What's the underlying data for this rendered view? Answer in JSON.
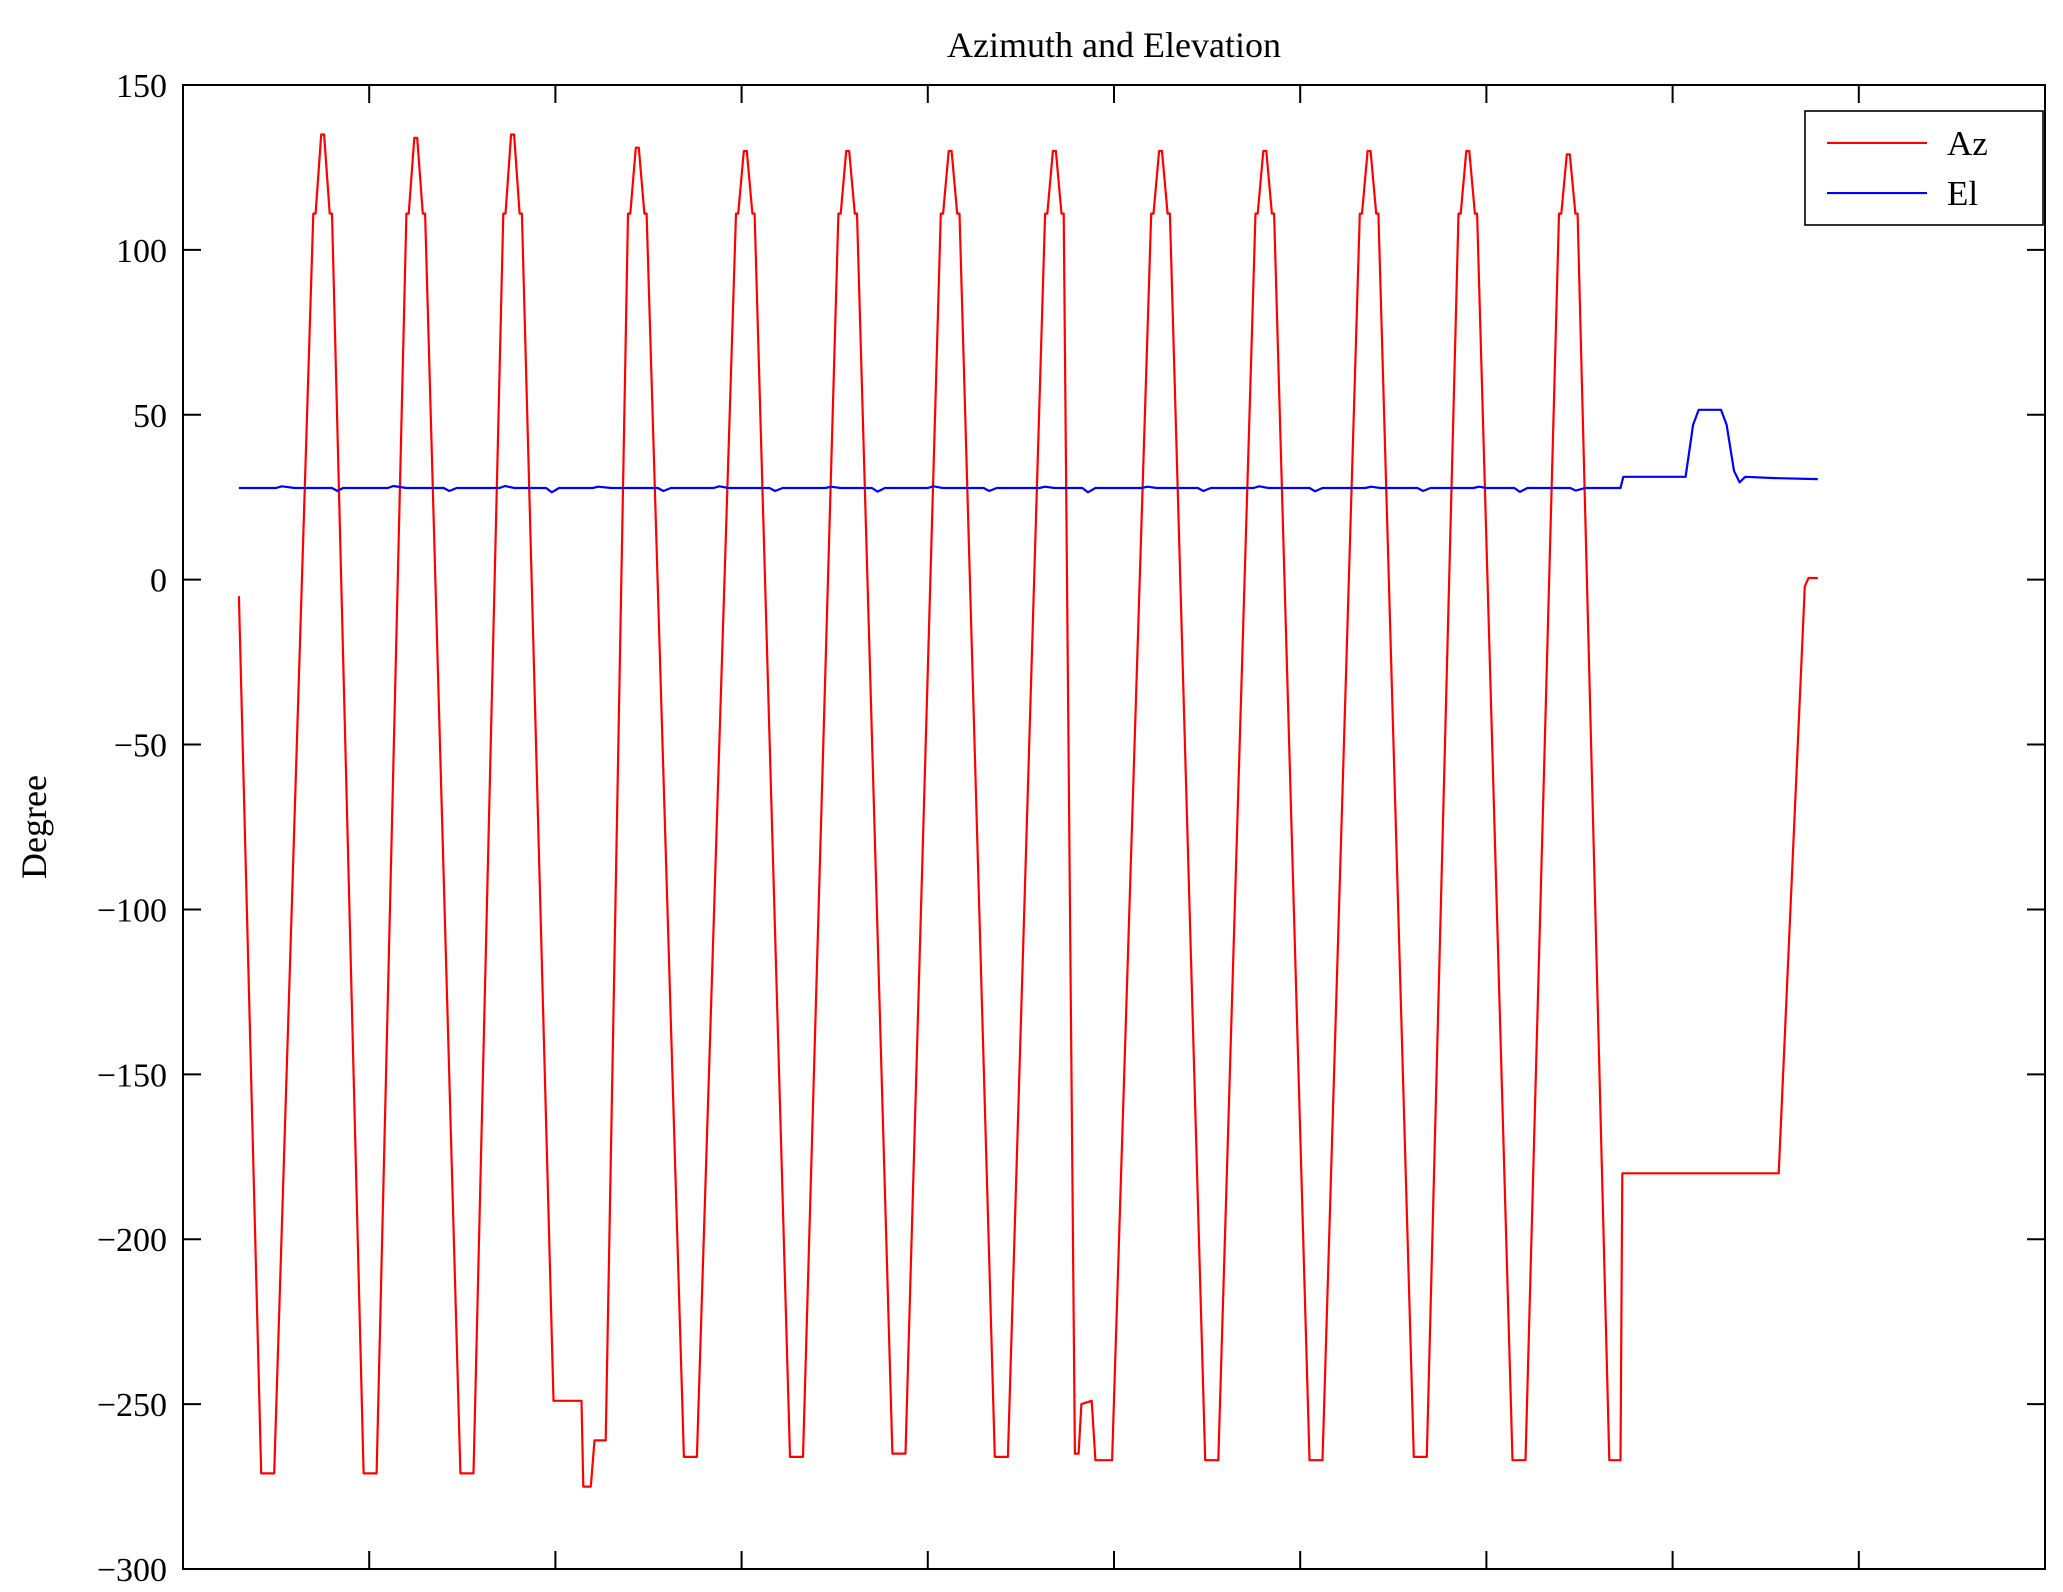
{
  "chart_data": {
    "type": "line",
    "title": "Azimuth and Elevation",
    "xlabel": "",
    "ylabel": "Degree",
    "xlim": [
      0,
      100
    ],
    "ylim": [
      -300,
      150
    ],
    "yticks": [
      -300,
      -250,
      -200,
      -150,
      -100,
      -50,
      0,
      50,
      100,
      150
    ],
    "xticks": [
      0,
      10,
      20,
      30,
      40,
      50,
      60,
      70,
      80,
      90,
      100
    ],
    "xticklabels_visible": false,
    "grid": false,
    "axis_color": "#000000",
    "legend": {
      "position": "upper right",
      "entries": [
        {
          "label": "Az",
          "color": "#ff0000"
        },
        {
          "label": "El",
          "color": "#0000ff"
        }
      ]
    },
    "series": [
      {
        "name": "Az",
        "color": "#ff0000",
        "points": [
          [
            3.0,
            -5
          ],
          [
            4.2,
            -271
          ],
          [
            4.9,
            -271
          ],
          [
            7.0,
            111
          ],
          [
            7.12,
            111
          ],
          [
            7.42,
            135
          ],
          [
            7.58,
            135
          ],
          [
            7.88,
            111
          ],
          [
            8.0,
            111
          ],
          [
            9.7,
            -271
          ],
          [
            10.4,
            -271
          ],
          [
            12.0,
            111
          ],
          [
            12.12,
            111
          ],
          [
            12.42,
            134
          ],
          [
            12.58,
            134
          ],
          [
            12.88,
            111
          ],
          [
            13.0,
            111
          ],
          [
            14.9,
            -271
          ],
          [
            15.6,
            -271
          ],
          [
            17.2,
            111
          ],
          [
            17.32,
            111
          ],
          [
            17.62,
            135
          ],
          [
            17.78,
            135
          ],
          [
            18.08,
            111
          ],
          [
            18.2,
            111
          ],
          [
            19.9,
            -249
          ],
          [
            21.4,
            -249
          ],
          [
            21.5,
            -275
          ],
          [
            21.9,
            -275
          ],
          [
            22.1,
            -261
          ],
          [
            22.7,
            -261
          ],
          [
            23.9,
            111
          ],
          [
            24.02,
            111
          ],
          [
            24.32,
            131
          ],
          [
            24.48,
            131
          ],
          [
            24.78,
            111
          ],
          [
            24.9,
            111
          ],
          [
            26.9,
            -266
          ],
          [
            27.6,
            -266
          ],
          [
            29.7,
            111
          ],
          [
            29.82,
            111
          ],
          [
            30.12,
            130
          ],
          [
            30.28,
            130
          ],
          [
            30.58,
            111
          ],
          [
            30.7,
            111
          ],
          [
            32.6,
            -266
          ],
          [
            33.3,
            -266
          ],
          [
            35.2,
            111
          ],
          [
            35.32,
            111
          ],
          [
            35.62,
            130
          ],
          [
            35.78,
            130
          ],
          [
            36.08,
            111
          ],
          [
            36.2,
            111
          ],
          [
            38.1,
            -265
          ],
          [
            38.8,
            -265
          ],
          [
            40.7,
            111
          ],
          [
            40.82,
            111
          ],
          [
            41.12,
            130
          ],
          [
            41.28,
            130
          ],
          [
            41.58,
            111
          ],
          [
            41.7,
            111
          ],
          [
            43.6,
            -266
          ],
          [
            44.3,
            -266
          ],
          [
            46.3,
            111
          ],
          [
            46.42,
            111
          ],
          [
            46.72,
            130
          ],
          [
            46.88,
            130
          ],
          [
            47.18,
            111
          ],
          [
            47.3,
            111
          ],
          [
            47.9,
            -265
          ],
          [
            48.1,
            -265
          ],
          [
            48.25,
            -250
          ],
          [
            48.8,
            -249
          ],
          [
            49.0,
            -267
          ],
          [
            49.9,
            -267
          ],
          [
            52.0,
            111
          ],
          [
            52.12,
            111
          ],
          [
            52.42,
            130
          ],
          [
            52.58,
            130
          ],
          [
            52.88,
            111
          ],
          [
            53.0,
            111
          ],
          [
            54.9,
            -267
          ],
          [
            55.6,
            -267
          ],
          [
            57.6,
            111
          ],
          [
            57.72,
            111
          ],
          [
            58.02,
            130
          ],
          [
            58.18,
            130
          ],
          [
            58.48,
            111
          ],
          [
            58.6,
            111
          ],
          [
            60.5,
            -267
          ],
          [
            61.2,
            -267
          ],
          [
            63.2,
            111
          ],
          [
            63.32,
            111
          ],
          [
            63.62,
            130
          ],
          [
            63.78,
            130
          ],
          [
            64.08,
            111
          ],
          [
            64.2,
            111
          ],
          [
            66.1,
            -266
          ],
          [
            66.8,
            -266
          ],
          [
            68.5,
            111
          ],
          [
            68.62,
            111
          ],
          [
            68.92,
            130
          ],
          [
            69.08,
            130
          ],
          [
            69.38,
            111
          ],
          [
            69.5,
            111
          ],
          [
            71.4,
            -267
          ],
          [
            72.1,
            -267
          ],
          [
            73.9,
            111
          ],
          [
            74.02,
            111
          ],
          [
            74.32,
            129
          ],
          [
            74.48,
            129
          ],
          [
            74.78,
            111
          ],
          [
            74.9,
            111
          ],
          [
            76.6,
            -267
          ],
          [
            77.2,
            -267
          ],
          [
            77.3,
            -180
          ],
          [
            85.7,
            -180
          ],
          [
            87.1,
            -2
          ],
          [
            87.3,
            0.5
          ],
          [
            87.8,
            0.5
          ]
        ]
      },
      {
        "name": "El",
        "color": "#0000ff",
        "points": [
          [
            3.0,
            27.8
          ],
          [
            5.0,
            27.8
          ],
          [
            5.3,
            28.3
          ],
          [
            6.0,
            27.8
          ],
          [
            8.0,
            27.8
          ],
          [
            8.3,
            26.9
          ],
          [
            8.6,
            27.8
          ],
          [
            11.0,
            27.8
          ],
          [
            11.3,
            28.4
          ],
          [
            12.0,
            27.8
          ],
          [
            14.0,
            27.8
          ],
          [
            14.3,
            26.9
          ],
          [
            14.7,
            27.8
          ],
          [
            17.0,
            27.8
          ],
          [
            17.3,
            28.4
          ],
          [
            17.8,
            27.8
          ],
          [
            19.5,
            27.8
          ],
          [
            19.8,
            26.5
          ],
          [
            20.2,
            27.8
          ],
          [
            22.0,
            27.8
          ],
          [
            22.3,
            28.2
          ],
          [
            23.0,
            27.8
          ],
          [
            25.5,
            27.8
          ],
          [
            25.8,
            26.9
          ],
          [
            26.2,
            27.8
          ],
          [
            28.5,
            27.8
          ],
          [
            28.8,
            28.3
          ],
          [
            29.3,
            27.8
          ],
          [
            31.5,
            27.8
          ],
          [
            31.8,
            26.9
          ],
          [
            32.2,
            27.8
          ],
          [
            34.5,
            27.8
          ],
          [
            34.8,
            28.2
          ],
          [
            35.3,
            27.8
          ],
          [
            37.0,
            27.8
          ],
          [
            37.3,
            26.7
          ],
          [
            37.7,
            27.8
          ],
          [
            40.0,
            27.8
          ],
          [
            40.3,
            28.3
          ],
          [
            40.8,
            27.8
          ],
          [
            43.0,
            27.8
          ],
          [
            43.3,
            26.9
          ],
          [
            43.7,
            27.8
          ],
          [
            46.0,
            27.8
          ],
          [
            46.3,
            28.2
          ],
          [
            46.8,
            27.8
          ],
          [
            48.3,
            27.8
          ],
          [
            48.6,
            26.5
          ],
          [
            49.0,
            27.8
          ],
          [
            51.5,
            27.8
          ],
          [
            51.8,
            28.2
          ],
          [
            52.3,
            27.8
          ],
          [
            54.5,
            27.8
          ],
          [
            54.8,
            26.9
          ],
          [
            55.2,
            27.8
          ],
          [
            57.5,
            27.8
          ],
          [
            57.8,
            28.3
          ],
          [
            58.3,
            27.8
          ],
          [
            60.5,
            27.8
          ],
          [
            60.8,
            26.8
          ],
          [
            61.2,
            27.8
          ],
          [
            63.5,
            27.8
          ],
          [
            63.8,
            28.2
          ],
          [
            64.3,
            27.8
          ],
          [
            66.3,
            27.8
          ],
          [
            66.6,
            26.9
          ],
          [
            67.0,
            27.8
          ],
          [
            69.3,
            27.8
          ],
          [
            69.6,
            28.2
          ],
          [
            70.0,
            27.8
          ],
          [
            71.5,
            27.8
          ],
          [
            71.8,
            26.6
          ],
          [
            72.2,
            27.8
          ],
          [
            74.5,
            27.8
          ],
          [
            74.8,
            27.0
          ],
          [
            75.3,
            27.8
          ],
          [
            76.8,
            27.8
          ],
          [
            77.2,
            27.8
          ],
          [
            77.35,
            31.2
          ],
          [
            80.7,
            31.2
          ],
          [
            81.1,
            47.0
          ],
          [
            81.4,
            51.5
          ],
          [
            82.6,
            51.5
          ],
          [
            82.9,
            47.0
          ],
          [
            83.3,
            33.0
          ],
          [
            83.6,
            29.5
          ],
          [
            83.9,
            31.2
          ],
          [
            85.5,
            30.8
          ],
          [
            87.8,
            30.5
          ]
        ]
      }
    ]
  }
}
